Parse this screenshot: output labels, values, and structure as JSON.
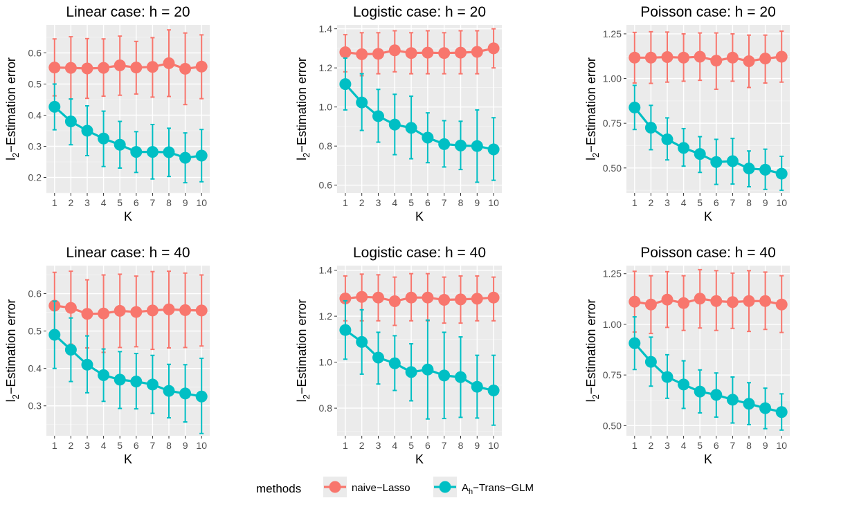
{
  "chart_data": {
    "type": "line",
    "x": [
      1,
      2,
      3,
      4,
      5,
      6,
      7,
      8,
      9,
      10
    ],
    "xlabel": "K",
    "ylabel": "l2-Estimation error",
    "ylabel_parts": {
      "main": "l",
      "sub": "2",
      "rest": "−Estimation error"
    },
    "legend": {
      "title": "methods",
      "placement": "bottom",
      "entries": [
        {
          "key": "naive",
          "label": "naive−Lasso",
          "color": "#F8766D"
        },
        {
          "key": "trans",
          "label_main": "A",
          "label_sub": "h",
          "label_rest": "−Trans−GLM",
          "color": "#00BFC4"
        }
      ]
    },
    "panels": [
      {
        "title": "Linear case: h = 20",
        "ylim": [
          0.15,
          0.69
        ],
        "yticks": [
          0.2,
          0.3,
          0.4,
          0.5,
          0.6
        ],
        "ytick_labels": [
          "0.2",
          "0.3",
          "0.4",
          "0.5",
          "0.6"
        ],
        "series": [
          {
            "key": "naive",
            "values": [
              0.553,
              0.552,
              0.55,
              0.552,
              0.56,
              0.553,
              0.555,
              0.567,
              0.549,
              0.556
            ],
            "lower": [
              0.462,
              0.452,
              0.454,
              0.461,
              0.464,
              0.468,
              0.458,
              0.46,
              0.434,
              0.453
            ],
            "upper": [
              0.645,
              0.652,
              0.646,
              0.645,
              0.654,
              0.637,
              0.649,
              0.674,
              0.664,
              0.658
            ]
          },
          {
            "key": "trans",
            "values": [
              0.427,
              0.38,
              0.35,
              0.325,
              0.305,
              0.282,
              0.282,
              0.281,
              0.263,
              0.27
            ],
            "lower": [
              0.353,
              0.305,
              0.27,
              0.235,
              0.23,
              0.216,
              0.195,
              0.203,
              0.183,
              0.186
            ],
            "upper": [
              0.5,
              0.452,
              0.43,
              0.413,
              0.38,
              0.347,
              0.37,
              0.358,
              0.343,
              0.354
            ]
          }
        ]
      },
      {
        "title": "Logistic case: h = 20",
        "ylim": [
          0.56,
          1.42
        ],
        "yticks": [
          0.6,
          0.8,
          1.0,
          1.2,
          1.4
        ],
        "ytick_labels": [
          "0.6",
          "0.8",
          "1.0",
          "1.2",
          "1.4"
        ],
        "series": [
          {
            "key": "naive",
            "values": [
              1.28,
              1.27,
              1.272,
              1.29,
              1.276,
              1.278,
              1.276,
              1.278,
              1.282,
              1.3
            ],
            "lower": [
              1.18,
              1.16,
              1.17,
              1.18,
              1.17,
              1.17,
              1.17,
              1.17,
              1.17,
              1.2
            ],
            "upper": [
              1.37,
              1.38,
              1.38,
              1.39,
              1.38,
              1.39,
              1.38,
              1.39,
              1.39,
              1.4
            ]
          },
          {
            "key": "trans",
            "values": [
              1.117,
              1.023,
              0.953,
              0.91,
              0.893,
              0.843,
              0.81,
              0.803,
              0.8,
              0.783
            ],
            "lower": [
              0.985,
              0.88,
              0.82,
              0.756,
              0.735,
              0.715,
              0.693,
              0.68,
              0.615,
              0.625
            ],
            "upper": [
              1.25,
              1.17,
              1.09,
              1.065,
              1.055,
              0.97,
              0.93,
              0.927,
              0.985,
              0.945
            ]
          }
        ]
      },
      {
        "title": "Poisson case: h = 20",
        "ylim": [
          0.36,
          1.3
        ],
        "yticks": [
          0.5,
          0.75,
          1.0,
          1.25
        ],
        "ytick_labels": [
          "0.50",
          "0.75",
          "1.00",
          "1.25"
        ],
        "series": [
          {
            "key": "naive",
            "values": [
              1.117,
              1.117,
              1.12,
              1.117,
              1.122,
              1.1,
              1.117,
              1.097,
              1.112,
              1.122
            ],
            "lower": [
              0.975,
              0.973,
              0.98,
              0.985,
              0.99,
              0.94,
              0.985,
              0.95,
              0.975,
              0.98
            ],
            "upper": [
              1.258,
              1.262,
              1.26,
              1.25,
              1.255,
              1.255,
              1.25,
              1.243,
              1.243,
              1.265
            ]
          },
          {
            "key": "trans",
            "values": [
              0.838,
              0.725,
              0.66,
              0.612,
              0.578,
              0.533,
              0.538,
              0.497,
              0.49,
              0.468
            ],
            "lower": [
              0.715,
              0.602,
              0.545,
              0.51,
              0.475,
              0.408,
              0.41,
              0.395,
              0.38,
              0.375
            ],
            "upper": [
              0.962,
              0.85,
              0.78,
              0.72,
              0.675,
              0.66,
              0.665,
              0.595,
              0.605,
              0.565
            ]
          }
        ]
      },
      {
        "title": "Linear case: h = 40",
        "ylim": [
          0.22,
          0.675
        ],
        "yticks": [
          0.3,
          0.4,
          0.5,
          0.6
        ],
        "ytick_labels": [
          "0.3",
          "0.4",
          "0.5",
          "0.6"
        ],
        "series": [
          {
            "key": "naive",
            "values": [
              0.568,
              0.562,
              0.546,
              0.547,
              0.554,
              0.551,
              0.555,
              0.558,
              0.556,
              0.555
            ],
            "lower": [
              0.478,
              0.465,
              0.455,
              0.443,
              0.456,
              0.458,
              0.451,
              0.455,
              0.456,
              0.46
            ],
            "upper": [
              0.657,
              0.66,
              0.637,
              0.65,
              0.652,
              0.647,
              0.659,
              0.66,
              0.655,
              0.65
            ]
          },
          {
            "key": "trans",
            "values": [
              0.49,
              0.45,
              0.41,
              0.382,
              0.37,
              0.365,
              0.357,
              0.34,
              0.333,
              0.325
            ],
            "lower": [
              0.4,
              0.365,
              0.335,
              0.312,
              0.293,
              0.292,
              0.28,
              0.268,
              0.257,
              0.226
            ],
            "upper": [
              0.58,
              0.535,
              0.487,
              0.452,
              0.445,
              0.44,
              0.435,
              0.411,
              0.41,
              0.427
            ]
          }
        ]
      },
      {
        "title": "Logistic case: h = 40",
        "ylim": [
          0.68,
          1.42
        ],
        "yticks": [
          0.8,
          1.0,
          1.2,
          1.4
        ],
        "ytick_labels": [
          "0.8",
          "1.0",
          "1.2",
          "1.4"
        ],
        "series": [
          {
            "key": "naive",
            "values": [
              1.277,
              1.284,
              1.281,
              1.265,
              1.281,
              1.281,
              1.271,
              1.273,
              1.276,
              1.281
            ],
            "lower": [
              1.18,
              1.18,
              1.18,
              1.16,
              1.18,
              1.18,
              1.17,
              1.17,
              1.18,
              1.18
            ],
            "upper": [
              1.375,
              1.383,
              1.38,
              1.37,
              1.385,
              1.385,
              1.37,
              1.375,
              1.375,
              1.37
            ]
          },
          {
            "key": "trans",
            "values": [
              1.14,
              1.088,
              1.02,
              0.995,
              0.957,
              0.968,
              0.942,
              0.935,
              0.893,
              0.877
            ],
            "lower": [
              1.013,
              0.948,
              0.905,
              0.877,
              0.832,
              0.753,
              0.755,
              0.76,
              0.757,
              0.726
            ],
            "upper": [
              1.267,
              1.228,
              1.13,
              1.115,
              1.08,
              1.183,
              1.13,
              1.11,
              1.03,
              1.03
            ]
          }
        ]
      },
      {
        "title": "Poisson case: h = 40",
        "ylim": [
          0.45,
          1.29
        ],
        "yticks": [
          0.5,
          0.75,
          1.0,
          1.25
        ],
        "ytick_labels": [
          "0.50",
          "0.75",
          "1.00",
          "1.25"
        ],
        "series": [
          {
            "key": "naive",
            "values": [
              1.112,
              1.098,
              1.122,
              1.105,
              1.127,
              1.115,
              1.11,
              1.115,
              1.115,
              1.098
            ],
            "lower": [
              0.962,
              0.955,
              0.985,
              0.97,
              0.982,
              0.97,
              0.98,
              0.965,
              0.975,
              0.96
            ],
            "upper": [
              1.262,
              1.24,
              1.26,
              1.24,
              1.27,
              1.265,
              1.253,
              1.265,
              1.258,
              1.24
            ]
          },
          {
            "key": "trans",
            "values": [
              0.907,
              0.815,
              0.74,
              0.703,
              0.668,
              0.652,
              0.628,
              0.608,
              0.586,
              0.567
            ],
            "lower": [
              0.777,
              0.695,
              0.635,
              0.585,
              0.563,
              0.542,
              0.513,
              0.505,
              0.485,
              0.478
            ],
            "upper": [
              1.037,
              0.937,
              0.85,
              0.82,
              0.775,
              0.76,
              0.74,
              0.712,
              0.685,
              0.657
            ]
          }
        ]
      }
    ]
  }
}
